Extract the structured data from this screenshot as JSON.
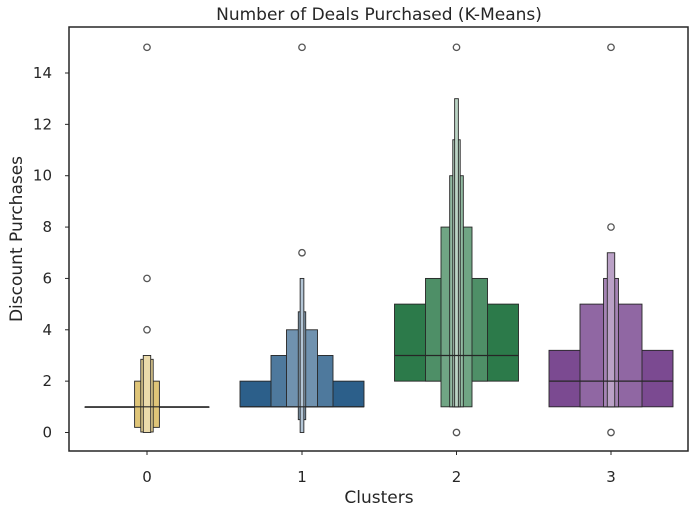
{
  "chart_data": {
    "type": "boxen",
    "title": "Number of Deals Purchased (K-Means)",
    "xlabel": "Clusters",
    "ylabel": "Discount Purchases",
    "categories": [
      "0",
      "1",
      "2",
      "3"
    ],
    "ylim": [
      -0.8,
      15.8
    ],
    "yticks": [
      0,
      2,
      4,
      6,
      8,
      10,
      12,
      14
    ],
    "grid": false,
    "clusters": [
      {
        "category": "0",
        "color": "#D9BA5E",
        "median": 1,
        "boxes": [
          {
            "low": 1,
            "high": 1,
            "width": 1.0
          },
          {
            "low": 0.2,
            "high": 2.0,
            "width": 0.2
          },
          {
            "low": 0.02,
            "high": 2.85,
            "width": 0.1
          },
          {
            "low": 0.0,
            "high": 3.0,
            "width": 0.06
          }
        ],
        "outliers": [
          4,
          6,
          15
        ]
      },
      {
        "category": "1",
        "color": "#2C5F8A",
        "median": 1,
        "boxes": [
          {
            "low": 1,
            "high": 2,
            "width": 1.0
          },
          {
            "low": 1,
            "high": 3,
            "width": 0.5
          },
          {
            "low": 1,
            "high": 4,
            "width": 0.25
          },
          {
            "low": 0.5,
            "high": 4.7,
            "width": 0.06
          },
          {
            "low": 0.0,
            "high": 6.0,
            "width": 0.03
          }
        ],
        "outliers": [
          7,
          15
        ]
      },
      {
        "category": "2",
        "color": "#2C7A4A",
        "median": 3,
        "boxes": [
          {
            "low": 2,
            "high": 5,
            "width": 1.0
          },
          {
            "low": 2,
            "high": 6,
            "width": 0.5
          },
          {
            "low": 1,
            "high": 8,
            "width": 0.25
          },
          {
            "low": 1,
            "high": 10,
            "width": 0.11
          },
          {
            "low": 1,
            "high": 11.4,
            "width": 0.06
          },
          {
            "low": 1,
            "high": 13.0,
            "width": 0.03
          }
        ],
        "outliers": [
          0,
          15
        ]
      },
      {
        "category": "3",
        "color": "#7B4A91",
        "median": 2,
        "boxes": [
          {
            "low": 1,
            "high": 3.2,
            "width": 1.0
          },
          {
            "low": 1,
            "high": 5,
            "width": 0.5
          },
          {
            "low": 1,
            "high": 6,
            "width": 0.12
          },
          {
            "low": 1,
            "high": 7,
            "width": 0.06
          }
        ],
        "outliers": [
          0,
          8,
          15
        ]
      }
    ]
  }
}
